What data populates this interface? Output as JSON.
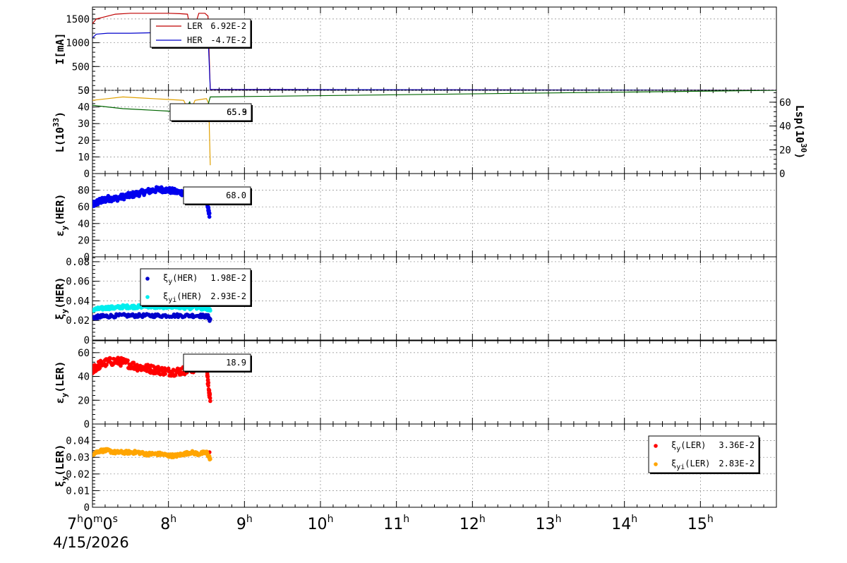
{
  "colors": {
    "ler": "#c00000",
    "her": "#0000cc",
    "lum_orange": "#e0a000",
    "lum_green": "#006600",
    "emit_her": "#0000ee",
    "xi_her": "#0000cc",
    "xi_her_i": "#00eeee",
    "emit_ler": "#ff0000",
    "xi_ler": "#ff0000",
    "xi_ler_i": "#ffa500",
    "grid": "#888888"
  },
  "chart_data": {
    "type": "line",
    "x_axis": {
      "range_hours": [
        7.0,
        16.0
      ],
      "tick_labels": [
        {
          "x": 7,
          "base": "7",
          "parts": [
            [
              "h",
              "0"
            ],
            [
              "m",
              "0"
            ],
            [
              "s",
              ""
            ]
          ]
        },
        {
          "x": 8,
          "base": "8",
          "parts": [
            [
              "h",
              ""
            ]
          ]
        },
        {
          "x": 9,
          "base": "9",
          "parts": [
            [
              "h",
              ""
            ]
          ]
        },
        {
          "x": 10,
          "base": "10",
          "parts": [
            [
              "h",
              ""
            ]
          ]
        },
        {
          "x": 11,
          "base": "11",
          "parts": [
            [
              "h",
              ""
            ]
          ]
        },
        {
          "x": 12,
          "base": "12",
          "parts": [
            [
              "h",
              ""
            ]
          ]
        },
        {
          "x": 13,
          "base": "13",
          "parts": [
            [
              "h",
              ""
            ]
          ]
        },
        {
          "x": 14,
          "base": "14",
          "parts": [
            [
              "h",
              ""
            ]
          ]
        },
        {
          "x": 15,
          "base": "15",
          "parts": [
            [
              "h",
              ""
            ]
          ]
        }
      ],
      "date": "4/15/2026"
    },
    "panels": [
      {
        "id": "current",
        "ylabel": "I[mA]",
        "ylim": [
          0,
          1750
        ],
        "yticks": [
          0,
          500,
          1000,
          1500
        ],
        "series": [
          {
            "name": "LER",
            "value": "6.92E-2",
            "color_key": "ler",
            "style": "line",
            "points": [
              [
                7.0,
                1400
              ],
              [
                7.05,
                1500
              ],
              [
                7.2,
                1560
              ],
              [
                7.3,
                1600
              ],
              [
                7.5,
                1620
              ],
              [
                7.8,
                1620
              ],
              [
                8.0,
                1620
              ],
              [
                8.15,
                1610
              ],
              [
                8.25,
                1600
              ],
              [
                8.28,
                1350
              ],
              [
                8.33,
                1260
              ],
              [
                8.4,
                1620
              ],
              [
                8.48,
                1620
              ],
              [
                8.52,
                1560
              ],
              [
                8.55,
                20
              ],
              [
                16.0,
                0
              ]
            ]
          },
          {
            "name": "HER",
            "value": "-4.7E-2",
            "color_key": "her",
            "style": "line",
            "points": [
              [
                7.0,
                1100
              ],
              [
                7.05,
                1180
              ],
              [
                7.2,
                1200
              ],
              [
                7.5,
                1200
              ],
              [
                7.8,
                1210
              ],
              [
                8.0,
                1210
              ],
              [
                8.3,
                1210
              ],
              [
                8.45,
                1200
              ],
              [
                8.52,
                1180
              ],
              [
                8.55,
                20
              ],
              [
                16.0,
                0
              ]
            ]
          }
        ],
        "legend": {
          "anchor": "top-left"
        }
      },
      {
        "id": "luminosity",
        "ylabel": "L(10^33)",
        "ylim": [
          0,
          50
        ],
        "yticks": [
          0,
          10,
          20,
          30,
          40,
          50
        ],
        "right_axis": {
          "label": "Lsp(10^30)",
          "ylim": [
            0,
            70
          ],
          "yticks": [
            0,
            20,
            40,
            60
          ]
        },
        "series": [
          {
            "name": "orange",
            "value": "65.3",
            "color_key": "lum_orange",
            "style": "line",
            "points": [
              [
                7.0,
                44
              ],
              [
                7.2,
                45
              ],
              [
                7.4,
                46
              ],
              [
                7.6,
                45.5
              ],
              [
                7.8,
                45
              ],
              [
                8.0,
                44.5
              ],
              [
                8.2,
                44
              ],
              [
                8.28,
                36.5
              ],
              [
                8.35,
                44
              ],
              [
                8.5,
                45
              ],
              [
                8.53,
                42
              ],
              [
                8.55,
                5
              ]
            ]
          },
          {
            "name": "green",
            "value": "65.9",
            "color_key": "lum_green",
            "style": "line",
            "points": [
              [
                7.0,
                41
              ],
              [
                7.2,
                40
              ],
              [
                7.4,
                39
              ],
              [
                7.6,
                38.5
              ],
              [
                7.8,
                38
              ],
              [
                8.0,
                37.5
              ],
              [
                8.2,
                37
              ],
              [
                8.28,
                43
              ],
              [
                8.32,
                37
              ],
              [
                8.5,
                38
              ],
              [
                8.55,
                46
              ],
              [
                16.0,
                50
              ]
            ]
          }
        ],
        "legend": {
          "anchor": "center-left"
        }
      },
      {
        "id": "emit_her",
        "ylabel": "εy(HER)",
        "ylim": [
          0,
          100
        ],
        "yticks": [
          0,
          20,
          40,
          60,
          80
        ],
        "series": [
          {
            "name": "εy(HER)",
            "value": "68.0",
            "color_key": "emit_her",
            "style": "scatter",
            "points": [
              [
                7.0,
                62
              ],
              [
                7.05,
                65
              ],
              [
                7.1,
                67
              ],
              [
                7.15,
                68
              ],
              [
                7.2,
                70
              ],
              [
                7.3,
                70
              ],
              [
                7.4,
                72
              ],
              [
                7.5,
                74
              ],
              [
                7.6,
                76
              ],
              [
                7.7,
                78
              ],
              [
                7.8,
                80
              ],
              [
                7.9,
                81
              ],
              [
                8.0,
                80
              ],
              [
                8.1,
                78
              ],
              [
                8.2,
                77
              ],
              [
                8.3,
                76
              ],
              [
                8.4,
                75
              ],
              [
                8.45,
                74
              ],
              [
                8.5,
                72
              ],
              [
                8.52,
                60
              ],
              [
                8.54,
                50
              ]
            ]
          }
        ],
        "legend": {
          "anchor": "center-left"
        }
      },
      {
        "id": "xi_her",
        "ylabel": "ξy(HER)",
        "ylim": [
          0,
          0.085
        ],
        "yticks": [
          0,
          0.02,
          0.04,
          0.06,
          0.08
        ],
        "series": [
          {
            "name": "ξy(HER)",
            "value": "1.98E-2",
            "color_key": "xi_her",
            "style": "scatter",
            "points": [
              [
                7.0,
                0.023
              ],
              [
                7.1,
                0.024
              ],
              [
                7.2,
                0.0245
              ],
              [
                7.4,
                0.025
              ],
              [
                7.6,
                0.025
              ],
              [
                7.8,
                0.025
              ],
              [
                8.0,
                0.025
              ],
              [
                8.2,
                0.025
              ],
              [
                8.4,
                0.025
              ],
              [
                8.52,
                0.024
              ],
              [
                8.55,
                0.02
              ]
            ]
          },
          {
            "name": "ξyi(HER)",
            "value": "2.93E-2",
            "color_key": "xi_her_i",
            "style": "scatter",
            "points": [
              [
                7.0,
                0.031
              ],
              [
                7.1,
                0.032
              ],
              [
                7.2,
                0.033
              ],
              [
                7.3,
                0.033
              ],
              [
                7.4,
                0.034
              ],
              [
                7.5,
                0.034
              ],
              [
                7.6,
                0.034
              ],
              [
                7.7,
                0.035
              ],
              [
                7.8,
                0.034
              ],
              [
                7.9,
                0.034
              ],
              [
                8.0,
                0.034
              ],
              [
                8.2,
                0.033
              ],
              [
                8.4,
                0.033
              ],
              [
                8.5,
                0.032
              ],
              [
                8.55,
                0.03
              ]
            ]
          }
        ],
        "legend": {
          "anchor": "top-left"
        }
      },
      {
        "id": "emit_ler",
        "ylabel": "εy(LER)",
        "ylim": [
          0,
          70
        ],
        "yticks": [
          0,
          20,
          40,
          60
        ],
        "series": [
          {
            "name": "εy(LER)",
            "value": "18.9",
            "color_key": "emit_ler",
            "style": "scatter",
            "points": [
              [
                7.0,
                45
              ],
              [
                7.05,
                48
              ],
              [
                7.1,
                50
              ],
              [
                7.2,
                52
              ],
              [
                7.3,
                53
              ],
              [
                7.4,
                52
              ],
              [
                7.5,
                50
              ],
              [
                7.6,
                48
              ],
              [
                7.7,
                47
              ],
              [
                7.8,
                46
              ],
              [
                7.9,
                45
              ],
              [
                8.0,
                44
              ],
              [
                8.1,
                44
              ],
              [
                8.2,
                45
              ],
              [
                8.3,
                46
              ],
              [
                8.4,
                48
              ],
              [
                8.5,
                50
              ],
              [
                8.52,
                35
              ],
              [
                8.55,
                20
              ]
            ]
          }
        ],
        "legend": {
          "anchor": "top-left"
        }
      },
      {
        "id": "xi_ler",
        "ylabel": "ξy(LER)",
        "ylim": [
          0,
          0.05
        ],
        "yticks": [
          0,
          0.01,
          0.02,
          0.03,
          0.04
        ],
        "series": [
          {
            "name": "ξy(LER)",
            "value": "3.36E-2",
            "color_key": "xi_ler",
            "style": "scatter",
            "points": [
              [
                8.54,
                0.034
              ]
            ]
          },
          {
            "name": "ξyi(LER)",
            "value": "2.83E-2",
            "color_key": "xi_ler_i",
            "style": "scatter",
            "points": [
              [
                7.0,
                0.032
              ],
              [
                7.1,
                0.034
              ],
              [
                7.2,
                0.034
              ],
              [
                7.3,
                0.033
              ],
              [
                7.4,
                0.033
              ],
              [
                7.5,
                0.033
              ],
              [
                7.6,
                0.033
              ],
              [
                7.7,
                0.032
              ],
              [
                7.8,
                0.032
              ],
              [
                7.9,
                0.032
              ],
              [
                8.0,
                0.031
              ],
              [
                8.1,
                0.031
              ],
              [
                8.2,
                0.032
              ],
              [
                8.3,
                0.033
              ],
              [
                8.4,
                0.032
              ],
              [
                8.5,
                0.033
              ],
              [
                8.55,
                0.029
              ]
            ]
          }
        ],
        "legend": {
          "anchor": "right"
        }
      }
    ]
  }
}
